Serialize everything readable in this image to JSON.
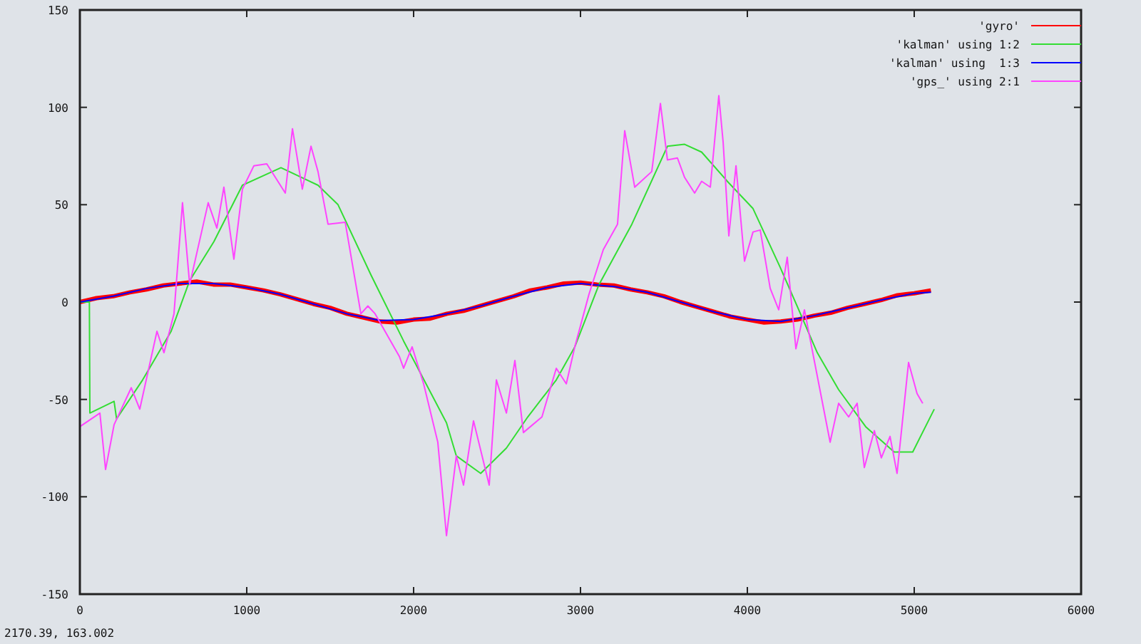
{
  "chart_data": {
    "type": "line",
    "xlim": [
      0,
      6000
    ],
    "xticks": [
      0,
      1000,
      2000,
      3000,
      4000,
      5000,
      6000
    ],
    "ylim": [
      -150,
      150
    ],
    "yticks": [
      -150,
      -100,
      -50,
      0,
      50,
      100,
      150
    ],
    "grid": false,
    "legend": "top right",
    "marker": "none",
    "line_style": "solid",
    "annotations": [
      "2170.39, 163.002"
    ],
    "series": [
      {
        "name": "'gyro'",
        "color": "#ff0000",
        "x": [
          0,
          100,
          200,
          300,
          400,
          500,
          600,
          700,
          800,
          900,
          1000,
          1100,
          1200,
          1300,
          1400,
          1500,
          1600,
          1700,
          1800,
          1900,
          2000,
          2100,
          2200,
          2300,
          2400,
          2500,
          2600,
          2700,
          2800,
          2900,
          3000,
          3100,
          3200,
          3300,
          3400,
          3500,
          3600,
          3700,
          3800,
          3900,
          4000,
          4100,
          4200,
          4300,
          4400,
          4500,
          4600,
          4700,
          4800,
          4900,
          5000,
          5100
        ],
        "values": [
          0,
          2,
          3,
          5,
          6.5,
          8.5,
          9.5,
          10.5,
          9,
          9,
          7.5,
          6,
          4,
          1.5,
          -1,
          -3,
          -6,
          -8,
          -10,
          -10.5,
          -9,
          -8.5,
          -6,
          -4.5,
          -2,
          0.5,
          3,
          6,
          7.5,
          9.5,
          10,
          9,
          8.5,
          6.5,
          5,
          3,
          0,
          -2.5,
          -5,
          -7.5,
          -9,
          -10.5,
          -10,
          -9,
          -7,
          -5.5,
          -3,
          -1,
          1,
          3.5,
          4.5,
          6
        ]
      },
      {
        "name": "'kalman' using 1:2",
        "color": "#33dd33",
        "x": [
          0,
          57,
          60,
          205,
          220,
          376,
          547,
          658,
          803,
          974,
          1205,
          1427,
          1547,
          1744,
          1940,
          2197,
          2256,
          2402,
          2556,
          2684,
          2855,
          2966,
          3111,
          3308,
          3521,
          3624,
          3726,
          3880,
          4034,
          4196,
          4308,
          4419,
          4547,
          4709,
          4880,
          4991,
          5120
        ],
        "values": [
          0,
          0,
          -57,
          -51,
          -60,
          -40,
          -15,
          11,
          31,
          60,
          69,
          60,
          50,
          14,
          -20,
          -62,
          -79,
          -88,
          -75,
          -59,
          -40,
          -23,
          9,
          40,
          80,
          81,
          77,
          62,
          48,
          18,
          -4,
          -26,
          -45,
          -64,
          -77,
          -77,
          -55
        ]
      },
      {
        "name": "'kalman' using  1:3",
        "color": "#0000ff",
        "x": [
          0,
          200,
          400,
          600,
          800,
          1000,
          1200,
          1400,
          1600,
          1800,
          2000,
          2200,
          2400,
          2600,
          2800,
          3000,
          3200,
          3400,
          3600,
          3800,
          4000,
          4200,
          4400,
          4600,
          4800,
          5000,
          5100
        ],
        "values": [
          0,
          3,
          7,
          9.5,
          9.5,
          7.5,
          4,
          -1,
          -6,
          -9.5,
          -9,
          -6,
          -2,
          3,
          7.5,
          9.5,
          8,
          5,
          0,
          -5,
          -9,
          -10,
          -7,
          -3,
          1,
          4.5,
          5
        ]
      },
      {
        "name": "'gps_' using 2:1",
        "color": "#ff44ff",
        "x": [
          0,
          120,
          154,
          205,
          308,
          359,
          462,
          504,
          564,
          615,
          658,
          769,
          821,
          863,
          923,
          974,
          1043,
          1120,
          1231,
          1274,
          1333,
          1385,
          1427,
          1487,
          1590,
          1684,
          1726,
          1769,
          1915,
          1940,
          1991,
          2060,
          2145,
          2197,
          2256,
          2299,
          2359,
          2453,
          2496,
          2556,
          2607,
          2658,
          2769,
          2855,
          2915,
          2966,
          3051,
          3137,
          3222,
          3265,
          3325,
          3427,
          3479,
          3521,
          3581,
          3624,
          3684,
          3726,
          3778,
          3829,
          3855,
          3889,
          3932,
          3983,
          4034,
          4077,
          4137,
          4188,
          4239,
          4265,
          4291,
          4342,
          4496,
          4547,
          4607,
          4658,
          4701,
          4761,
          4803,
          4855,
          4897,
          4966,
          5017,
          5051
        ],
        "values": [
          -64,
          -57,
          -86,
          -63,
          -44,
          -55,
          -15,
          -26,
          -6,
          51,
          9,
          51,
          38,
          59,
          22,
          58,
          70,
          71,
          56,
          89,
          58,
          80,
          67,
          40,
          41,
          -6,
          -2,
          -6,
          -28,
          -34,
          -23,
          -42,
          -72,
          -120,
          -79,
          -94,
          -61,
          -94,
          -40,
          -57,
          -30,
          -67,
          -59,
          -34,
          -42,
          -23,
          4,
          27,
          40,
          88,
          59,
          67,
          102,
          73,
          74,
          64,
          56,
          62,
          59,
          106,
          82,
          34,
          70,
          21,
          36,
          37,
          7,
          -4,
          23,
          -1,
          -24,
          -4,
          -72,
          -52,
          -59,
          -52,
          -85,
          -66,
          -80,
          -69,
          -88,
          -31,
          -47,
          -52
        ]
      }
    ]
  }
}
